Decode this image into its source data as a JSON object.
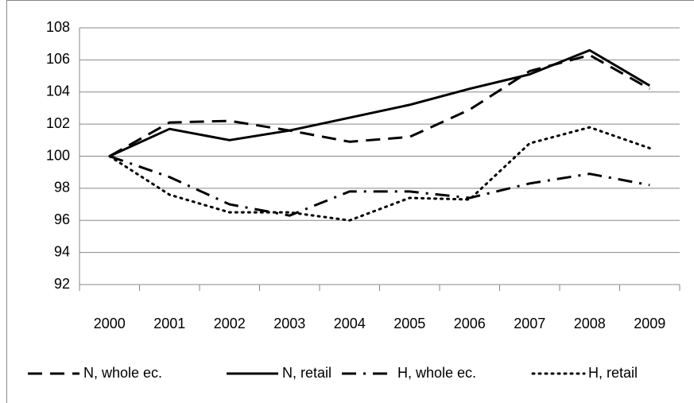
{
  "chart_data": {
    "type": "line",
    "categories": [
      "2000",
      "2001",
      "2002",
      "2003",
      "2004",
      "2005",
      "2006",
      "2007",
      "2008",
      "2009"
    ],
    "series": [
      {
        "name": "N, whole ec.",
        "color": "#000000",
        "dash": "dashed",
        "values": [
          100,
          102.1,
          102.2,
          101.6,
          100.9,
          101.2,
          102.9,
          105.3,
          106.3,
          104.2
        ]
      },
      {
        "name": "N, retail",
        "color": "#000000",
        "dash": "solid",
        "values": [
          100,
          101.7,
          101.0,
          101.6,
          102.4,
          103.2,
          104.2,
          105.1,
          106.6,
          104.4
        ]
      },
      {
        "name": "H, whole ec.",
        "color": "#000000",
        "dash": "dashdot",
        "values": [
          100,
          98.7,
          97.0,
          96.3,
          97.8,
          97.8,
          97.4,
          98.3,
          98.9,
          98.2
        ]
      },
      {
        "name": "H, retail",
        "color": "#000000",
        "dash": "dotted",
        "values": [
          100,
          97.6,
          96.5,
          96.5,
          96.0,
          97.4,
          97.3,
          100.8,
          101.8,
          100.5
        ]
      }
    ],
    "ylim": [
      92,
      108
    ],
    "yticks": [
      92,
      94,
      96,
      98,
      100,
      102,
      104,
      106,
      108
    ],
    "grid": true,
    "legend": "bottom"
  }
}
